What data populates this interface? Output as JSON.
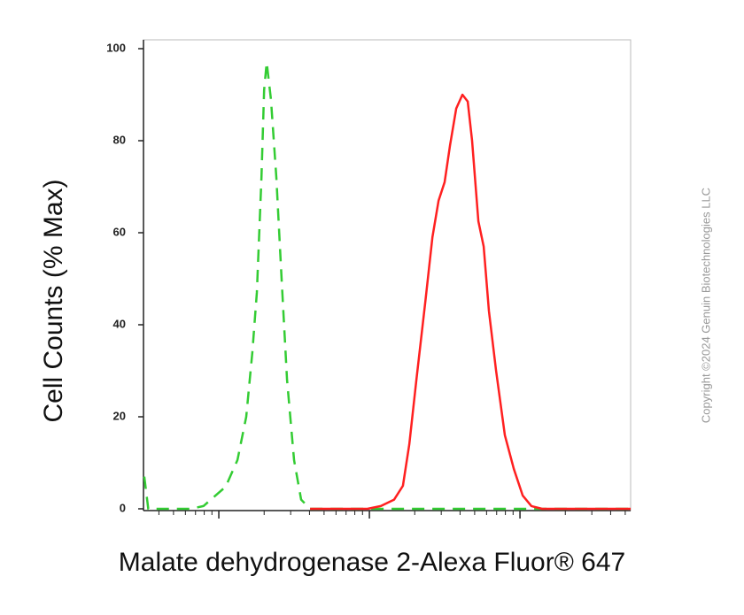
{
  "chart_data": {
    "type": "line",
    "y_label": "Cell Counts (% Max)",
    "x_label": "Malate dehydrogenase 2-Alexa Fluor® 647",
    "watermark": "Copyright ©2024 Genuin Biotechnologies LLC",
    "x_scale": "log",
    "xlim": [
      3.16,
      5430
    ],
    "xticks": [
      10,
      100,
      1000
    ],
    "xminorticks": [
      4,
      5,
      6,
      7,
      8,
      9,
      20,
      30,
      40,
      50,
      60,
      70,
      80,
      90,
      200,
      300,
      400,
      500,
      600,
      700,
      800,
      900,
      2000,
      3000,
      4000,
      5000
    ],
    "ylim": [
      0,
      100
    ],
    "yticks": [
      0,
      20,
      40,
      60,
      80,
      100
    ],
    "series": [
      {
        "color": "#33cc33",
        "dash": true,
        "x": [
          3.2,
          3.4,
          6.5,
          7.9,
          11.1,
          13.3,
          15.2,
          16.7,
          17.9,
          19.2,
          20,
          20.8,
          22.2,
          24.1,
          26.2,
          28.4,
          31.6,
          35.2,
          40.4,
          5430
        ],
        "values": [
          7,
          0,
          0,
          0.6,
          4.8,
          10.6,
          20,
          34,
          47,
          72,
          91,
          97,
          89,
          72,
          49,
          28,
          10.6,
          2,
          0,
          0
        ]
      },
      {
        "color": "#ff2020",
        "dash": false,
        "x": [
          40.4,
          97,
          119,
          146,
          167,
          184,
          205,
          235,
          262,
          288,
          316,
          343,
          377,
          415,
          450,
          481,
          529,
          574,
          622,
          694,
          794,
          910,
          1042,
          1191,
          1403,
          5430
        ],
        "values": [
          0,
          0,
          0.6,
          2,
          5,
          14,
          28,
          45,
          59,
          67,
          71,
          79,
          87,
          90,
          88.5,
          80,
          62.5,
          57,
          43,
          30,
          16,
          8.7,
          2.9,
          0.6,
          0,
          0
        ]
      }
    ]
  }
}
